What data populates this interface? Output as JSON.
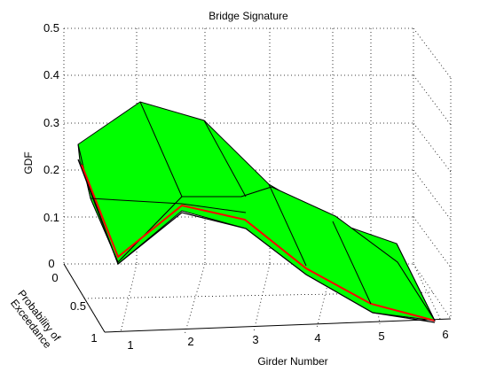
{
  "chart_data": {
    "type": "surface",
    "title": "Bridge Signature",
    "xlabel": "Girder Number",
    "ylabel": "Probability of Exceedance",
    "zlabel": "GDF",
    "xticks": [
      1,
      2,
      3,
      4,
      5,
      6
    ],
    "yticks": [
      "0",
      "0.5",
      "1"
    ],
    "zticks": [
      "0",
      "0.1",
      "0.2",
      "0.3",
      "0.4",
      "0.5"
    ],
    "xlim": [
      1,
      6
    ],
    "ylim": [
      0,
      1
    ],
    "zlim": [
      0,
      0.5
    ],
    "grid": true,
    "surface_color": "#00ff00",
    "accent_color": "#ff0000",
    "girders": [
      1,
      2,
      3,
      4,
      5,
      6
    ],
    "upper_envelope_gdf": [
      0.27,
      0.38,
      0.38,
      0.29,
      0.23,
      0.17
    ],
    "lower_envelope_gdf": [
      0.21,
      0.2,
      0.15,
      0.09,
      0.04,
      0.0
    ]
  }
}
